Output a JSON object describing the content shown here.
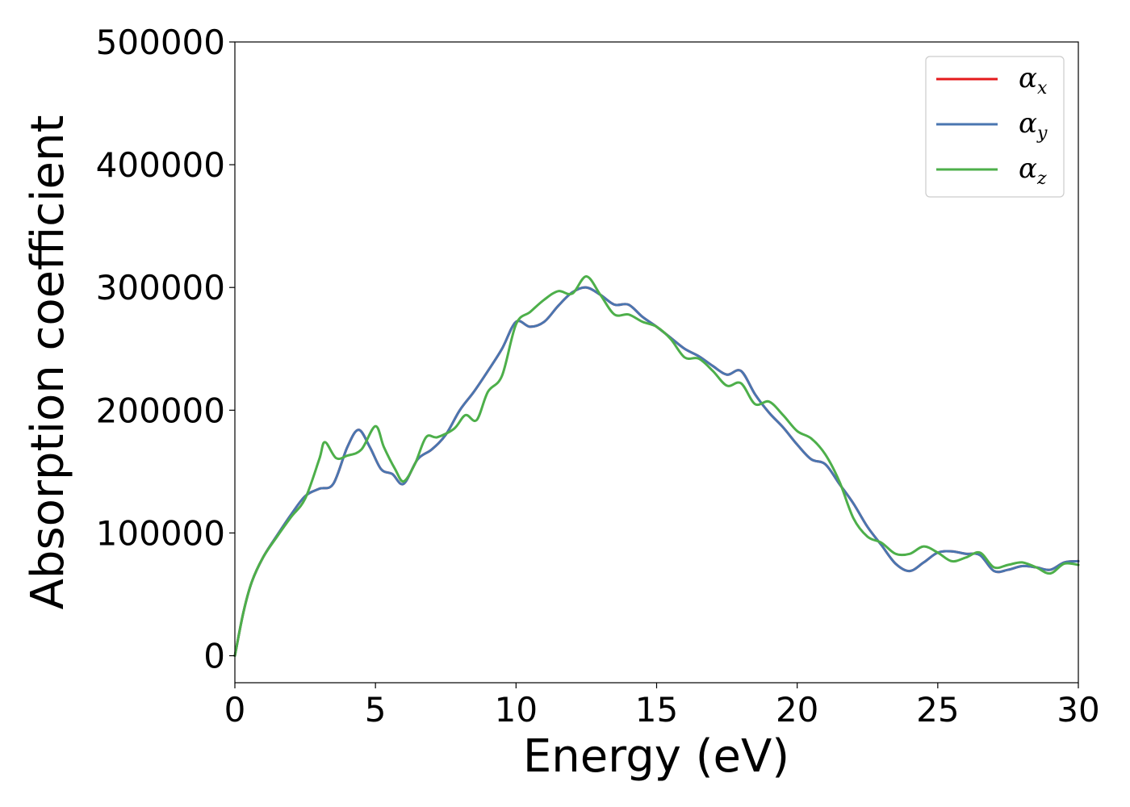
{
  "chart_data": {
    "type": "line",
    "title": "",
    "xlabel": "Energy (eV)",
    "ylabel": "Absorption coefficient",
    "xlim": [
      0,
      30
    ],
    "ylim": [
      -22000,
      500000
    ],
    "xticks": [
      0,
      5,
      10,
      15,
      20,
      25,
      30
    ],
    "yticks": [
      0,
      100000,
      200000,
      300000,
      400000,
      500000
    ],
    "xtick_labels": [
      "0",
      "5",
      "10",
      "15",
      "20",
      "25",
      "30"
    ],
    "ytick_labels": [
      "0",
      "100000",
      "200000",
      "300000",
      "400000",
      "500000"
    ],
    "grid": false,
    "legend_position": "top-right",
    "series": [
      {
        "name": "α",
        "subscript": "x",
        "color": "#e41a1c",
        "x": [
          0,
          0.3,
          0.6,
          1.0,
          1.5,
          2.0,
          2.5,
          3.0,
          3.5,
          4.0,
          4.4,
          4.8,
          5.2,
          5.6,
          6.0,
          6.5,
          7.0,
          7.5,
          8.0,
          8.5,
          9.0,
          9.5,
          10.0,
          10.5,
          11.0,
          11.5,
          12.0,
          12.5,
          13.0,
          13.5,
          14.0,
          14.5,
          15.0,
          15.5,
          16.0,
          16.5,
          17.0,
          17.5,
          18.0,
          18.5,
          19.0,
          19.5,
          20.0,
          20.5,
          21.0,
          21.5,
          22.0,
          22.5,
          23.0,
          23.5,
          24.0,
          24.5,
          25.0,
          25.5,
          26.0,
          26.5,
          27.0,
          27.5,
          28.0,
          28.5,
          29.0,
          29.5,
          30.0
        ],
        "y": [
          0,
          35000,
          60000,
          80000,
          98000,
          115000,
          130000,
          136000,
          140000,
          170000,
          184000,
          170000,
          152000,
          148000,
          140000,
          160000,
          168000,
          180000,
          200000,
          215000,
          232000,
          250000,
          272000,
          268000,
          272000,
          285000,
          296000,
          300000,
          294000,
          286000,
          286000,
          276000,
          268000,
          259000,
          250000,
          244000,
          236000,
          229000,
          232000,
          213000,
          198000,
          186000,
          172000,
          160000,
          156000,
          140000,
          124000,
          105000,
          90000,
          75000,
          69000,
          76000,
          84000,
          85000,
          83000,
          82000,
          69000,
          70000,
          73000,
          72000,
          70000,
          76000,
          77000
        ]
      },
      {
        "name": "α",
        "subscript": "y",
        "color": "#4a76b0",
        "x": [
          0,
          0.3,
          0.6,
          1.0,
          1.5,
          2.0,
          2.5,
          3.0,
          3.5,
          4.0,
          4.4,
          4.8,
          5.2,
          5.6,
          6.0,
          6.5,
          7.0,
          7.5,
          8.0,
          8.5,
          9.0,
          9.5,
          10.0,
          10.5,
          11.0,
          11.5,
          12.0,
          12.5,
          13.0,
          13.5,
          14.0,
          14.5,
          15.0,
          15.5,
          16.0,
          16.5,
          17.0,
          17.5,
          18.0,
          18.5,
          19.0,
          19.5,
          20.0,
          20.5,
          21.0,
          21.5,
          22.0,
          22.5,
          23.0,
          23.5,
          24.0,
          24.5,
          25.0,
          25.5,
          26.0,
          26.5,
          27.0,
          27.5,
          28.0,
          28.5,
          29.0,
          29.5,
          30.0
        ],
        "y": [
          0,
          35000,
          60000,
          80000,
          98000,
          115000,
          130000,
          136000,
          140000,
          170000,
          184000,
          170000,
          152000,
          148000,
          140000,
          160000,
          168000,
          180000,
          200000,
          215000,
          232000,
          250000,
          272000,
          268000,
          272000,
          285000,
          296000,
          300000,
          294000,
          286000,
          286000,
          276000,
          268000,
          259000,
          250000,
          244000,
          236000,
          229000,
          232000,
          213000,
          198000,
          186000,
          172000,
          160000,
          156000,
          140000,
          124000,
          105000,
          90000,
          75000,
          69000,
          76000,
          84000,
          85000,
          83000,
          82000,
          69000,
          70000,
          73000,
          72000,
          70000,
          76000,
          77000
        ]
      },
      {
        "name": "α",
        "subscript": "z",
        "color": "#4daf4a",
        "x": [
          0,
          0.3,
          0.6,
          1.0,
          1.5,
          2.0,
          2.5,
          3.0,
          3.2,
          3.6,
          4.0,
          4.5,
          5.0,
          5.3,
          5.7,
          6.0,
          6.4,
          6.8,
          7.2,
          7.8,
          8.2,
          8.6,
          9.0,
          9.5,
          10.0,
          10.5,
          11.0,
          11.5,
          12.0,
          12.5,
          13.0,
          13.5,
          14.0,
          14.5,
          15.0,
          15.5,
          16.0,
          16.5,
          17.0,
          17.5,
          18.0,
          18.5,
          19.0,
          19.5,
          20.0,
          20.5,
          21.0,
          21.5,
          22.0,
          22.5,
          23.0,
          23.5,
          24.0,
          24.5,
          25.0,
          25.5,
          26.0,
          26.5,
          27.0,
          27.5,
          28.0,
          28.5,
          29.0,
          29.5,
          30.0
        ],
        "y": [
          0,
          35000,
          60000,
          80000,
          97000,
          113000,
          128000,
          160000,
          174000,
          161000,
          163000,
          168000,
          187000,
          170000,
          152000,
          142000,
          156000,
          178000,
          178000,
          185000,
          196000,
          192000,
          215000,
          228000,
          270000,
          280000,
          290000,
          297000,
          295000,
          309000,
          294000,
          278000,
          278000,
          272000,
          268000,
          258000,
          243000,
          242000,
          232000,
          220000,
          222000,
          205000,
          207000,
          196000,
          183000,
          177000,
          164000,
          142000,
          112000,
          97000,
          92000,
          83000,
          83000,
          89000,
          84000,
          77000,
          80000,
          84000,
          72000,
          74000,
          76000,
          72000,
          67000,
          75000,
          74000
        ]
      }
    ]
  }
}
